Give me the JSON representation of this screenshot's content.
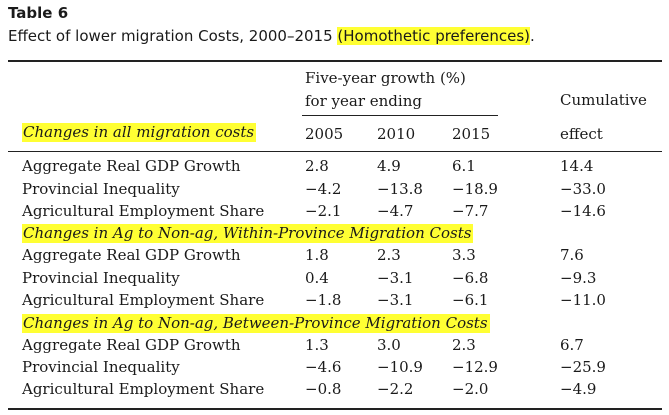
{
  "table_title": "Table 6",
  "caption": {
    "text": "Effect of lower migration Costs, 2000–2015 ",
    "highlight": "(Homothetic preferences)",
    "end": "."
  },
  "header": {
    "group_line1": "Five-year growth (%)",
    "group_line2": "for year ending",
    "cum_line1": "Cumulative",
    "cum_line2": "effect",
    "years": [
      "2005",
      "2010",
      "2015"
    ]
  },
  "sections": [
    {
      "title": "Changes in all migration costs",
      "rows": [
        {
          "label": "Aggregate Real GDP Growth",
          "values": [
            "2.8",
            "4.9",
            "6.1"
          ],
          "cumulative": "14.4"
        },
        {
          "label": "Provincial Inequality",
          "values": [
            "−4.2",
            "−13.8",
            "−18.9"
          ],
          "cumulative": "−33.0"
        },
        {
          "label": "Agricultural Employment Share",
          "values": [
            "−2.1",
            "−4.7",
            "−7.7"
          ],
          "cumulative": "−14.6"
        }
      ]
    },
    {
      "title": "Changes in Ag to Non-ag, Within-Province Migration Costs",
      "rows": [
        {
          "label": "Aggregate Real GDP Growth",
          "values": [
            "1.8",
            "2.3",
            "3.3"
          ],
          "cumulative": "7.6"
        },
        {
          "label": "Provincial Inequality",
          "values": [
            "0.4",
            "−3.1",
            "−6.8"
          ],
          "cumulative": "−9.3"
        },
        {
          "label": "Agricultural Employment Share",
          "values": [
            "−1.8",
            "−3.1",
            "−6.1"
          ],
          "cumulative": "−11.0"
        }
      ]
    },
    {
      "title": "Changes in Ag to Non-ag, Between-Province Migration Costs",
      "rows": [
        {
          "label": "Aggregate Real GDP Growth",
          "values": [
            "1.3",
            "3.0",
            "2.3"
          ],
          "cumulative": "6.7"
        },
        {
          "label": "Provincial Inequality",
          "values": [
            "−4.6",
            "−10.9",
            "−12.9"
          ],
          "cumulative": "−25.9"
        },
        {
          "label": "Agricultural Employment Share",
          "values": [
            "−0.8",
            "−2.2",
            "−2.0"
          ],
          "cumulative": "−4.9"
        }
      ]
    }
  ]
}
